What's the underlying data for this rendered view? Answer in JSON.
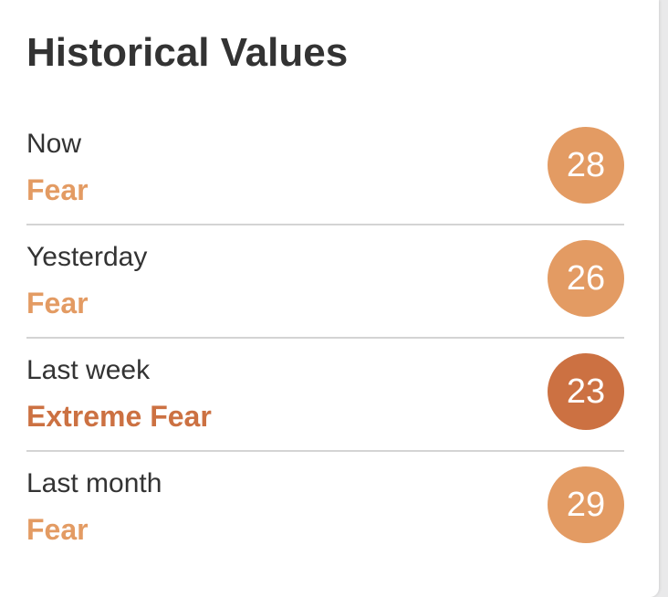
{
  "widget": {
    "title": "Historical Values"
  },
  "colors": {
    "fear": "#e39b63",
    "extreme_fear": "#cc7142"
  },
  "rows": [
    {
      "period": "Now",
      "classification": "Fear",
      "value": "28",
      "tone": "fear"
    },
    {
      "period": "Yesterday",
      "classification": "Fear",
      "value": "26",
      "tone": "fear"
    },
    {
      "period": "Last week",
      "classification": "Extreme Fear",
      "value": "23",
      "tone": "extreme_fear"
    },
    {
      "period": "Last month",
      "classification": "Fear",
      "value": "29",
      "tone": "fear"
    }
  ]
}
